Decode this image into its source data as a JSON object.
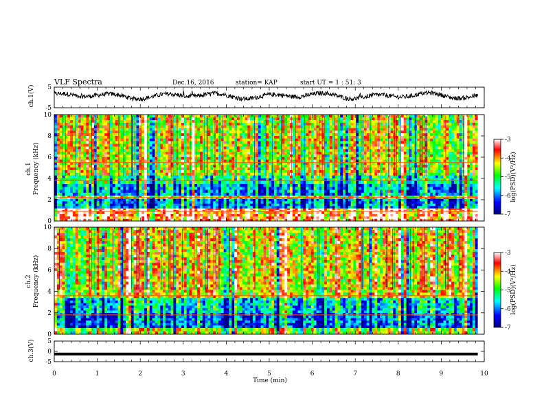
{
  "header": {
    "title": "VLF Spectra",
    "date": "Dec.16, 2016",
    "station": "station= KAP",
    "start_ut": "start  UT =   1 : 51: 3"
  },
  "chart_data": [
    {
      "type": "line",
      "panel": "ch1-waveform",
      "ylabel": "ch.1(V)",
      "ylim": [
        -5,
        5
      ],
      "yticks": [
        "5",
        "-5"
      ],
      "xlim": [
        0,
        9.85
      ],
      "color": "#000000"
    },
    {
      "type": "heatmap",
      "panel": "ch1-spectrogram",
      "ylabel_channel": "ch.1",
      "ylabel": "Frequency (kHz)",
      "ylim": [
        0,
        10
      ],
      "yticks": [
        "0",
        "2",
        "4",
        "6",
        "8",
        "10"
      ],
      "colorbar": {
        "label": "log(PSD)(V²/Hz)",
        "range": [
          -7,
          -3
        ],
        "ticks": [
          "-3",
          "-4",
          "-5",
          "-6",
          "-7"
        ],
        "colormap": [
          "#000080",
          "#0000ff",
          "#00ffff",
          "#00ff00",
          "#ffff00",
          "#ff0000",
          "#ffffff"
        ]
      },
      "bands": [
        {
          "from": 0.0,
          "to": 0.9,
          "level": -3.5
        },
        {
          "from": 0.9,
          "to": 1.2,
          "level": -3.2
        },
        {
          "from": 1.2,
          "to": 2.1,
          "level": -5.9
        },
        {
          "from": 2.1,
          "to": 2.4,
          "level": -4.0
        },
        {
          "from": 2.4,
          "to": 3.5,
          "level": -5.8
        },
        {
          "from": 3.5,
          "to": 4.3,
          "level": -5.2
        },
        {
          "from": 4.3,
          "to": 10.0,
          "level": -4.4
        }
      ],
      "lines_khz": [
        0.9,
        2.2,
        3.8,
        5.5
      ]
    },
    {
      "type": "heatmap",
      "panel": "ch2-spectrogram",
      "ylabel_channel": "ch.2",
      "ylabel": "Frequency (kHz)",
      "ylim": [
        0,
        10
      ],
      "yticks": [
        "0",
        "2",
        "4",
        "6",
        "8",
        "10"
      ],
      "colorbar": {
        "label": "log(PSD)(V²/Hz)",
        "range": [
          -7,
          -3
        ],
        "ticks": [
          "-3",
          "-4",
          "-5",
          "-6",
          "-7"
        ],
        "colormap": [
          "#000080",
          "#0000ff",
          "#00ffff",
          "#00ff00",
          "#ffff00",
          "#ff0000",
          "#ffffff"
        ]
      },
      "bands": [
        {
          "from": 0.0,
          "to": 0.6,
          "level": -4.6
        },
        {
          "from": 0.6,
          "to": 2.0,
          "level": -6.1
        },
        {
          "from": 2.0,
          "to": 3.4,
          "level": -5.6
        },
        {
          "from": 3.4,
          "to": 10.0,
          "level": -4.3
        }
      ],
      "lines_khz": [
        1.8,
        3.6
      ]
    },
    {
      "type": "line",
      "panel": "ch3-waveform",
      "ylabel": "ch.3(V)",
      "ylim": [
        -5,
        5
      ],
      "yticks": [
        "5",
        "0",
        "-5"
      ],
      "xlim": [
        0,
        9.85
      ],
      "constant_value": -1.3,
      "color": "#000000"
    }
  ],
  "xaxis": {
    "label": "Time (min)",
    "range": [
      0,
      10
    ],
    "ticks": [
      "0",
      "1",
      "2",
      "3",
      "4",
      "5",
      "6",
      "7",
      "8",
      "9",
      "10"
    ]
  }
}
